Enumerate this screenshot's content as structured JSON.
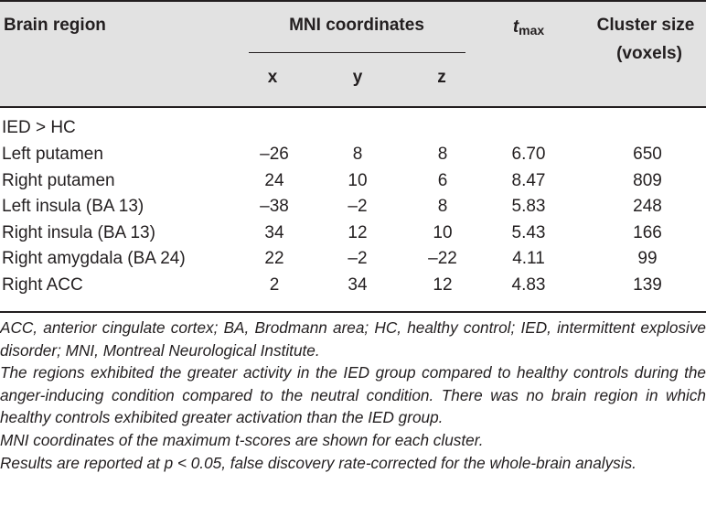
{
  "header": {
    "brain_region": "Brain region",
    "mni_coordinates": "MNI coordinates",
    "x": "x",
    "y": "y",
    "z": "z",
    "tmax_t": "t",
    "tmax_sub": "max",
    "cluster_size_line1": "Cluster size",
    "cluster_size_line2": "(voxels)"
  },
  "group_label": "IED > HC",
  "rows": [
    {
      "region": "Left putamen",
      "x": "–26",
      "y": "8",
      "z": "8",
      "tmax": "6.70",
      "cluster": "650"
    },
    {
      "region": "Right putamen",
      "x": "24",
      "y": "10",
      "z": "6",
      "tmax": "8.47",
      "cluster": "809"
    },
    {
      "region": "Left insula (BA 13)",
      "x": "–38",
      "y": "–2",
      "z": "8",
      "tmax": "5.83",
      "cluster": "248"
    },
    {
      "region": "Right insula (BA 13)",
      "x": "34",
      "y": "12",
      "z": "10",
      "tmax": "5.43",
      "cluster": "166"
    },
    {
      "region": "Right amygdala (BA 24)",
      "x": "22",
      "y": "–2",
      "z": "–22",
      "tmax": "4.11",
      "cluster": "99"
    },
    {
      "region": "Right ACC",
      "x": "2",
      "y": "34",
      "z": "12",
      "tmax": "4.83",
      "cluster": "139"
    }
  ],
  "notes": [
    "ACC, anterior cingulate cortex; BA, Brodmann area; HC, healthy control; IED, intermittent explosive disorder; MNI, Montreal Neurological Institute.",
    "The regions exhibited the greater activity in the IED group compared to healthy controls during the anger-inducing condition compared to the neutral condition. There was no brain region in which healthy controls exhibited greater activation than the IED group.",
    "MNI coordinates of the maximum t-scores are shown for each cluster.",
    "Results are reported at p < 0.05, false discovery rate-corrected for the whole-brain analysis."
  ]
}
